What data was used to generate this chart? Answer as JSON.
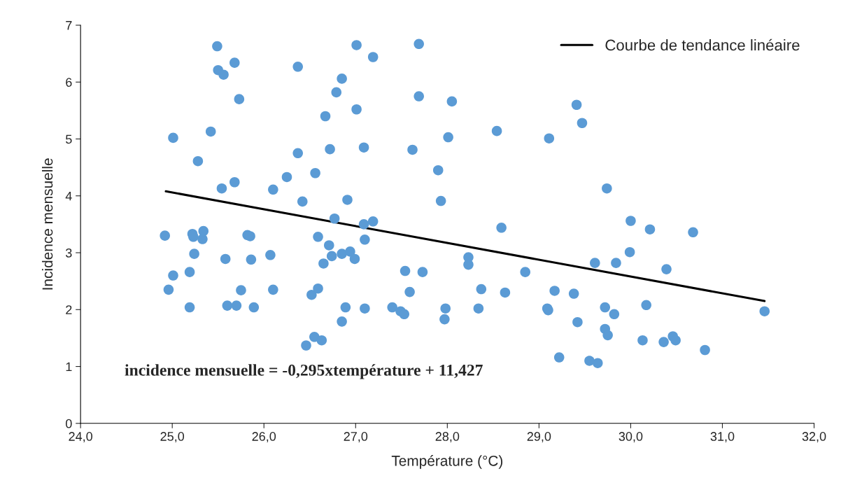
{
  "chart_data": {
    "type": "scatter",
    "xlabel": "Température (°C)",
    "ylabel": "Incidence mensuelle",
    "xlim": [
      24,
      32
    ],
    "ylim": [
      0,
      7
    ],
    "xticks": [
      {
        "value": 24,
        "label": "24,0"
      },
      {
        "value": 25,
        "label": "25,0"
      },
      {
        "value": 26,
        "label": "26,0"
      },
      {
        "value": 27,
        "label": "27,0"
      },
      {
        "value": 28,
        "label": "28,0"
      },
      {
        "value": 29,
        "label": "29,0"
      },
      {
        "value": 30,
        "label": "30,0"
      },
      {
        "value": 31,
        "label": "31,0"
      },
      {
        "value": 32,
        "label": "32,0"
      }
    ],
    "yticks": [
      0,
      1,
      2,
      3,
      4,
      5,
      6,
      7
    ],
    "grid": false,
    "legend": "top right",
    "marker": "circle",
    "annotations": [
      {
        "text": "incidence mensuelle = -0,295xtempérature + 11,427"
      }
    ],
    "series": [
      {
        "color": "#5b9bd5",
        "x": [
          24.92,
          24.96,
          25.01,
          25.01,
          25.19,
          25.22,
          25.23,
          25.24,
          25.28,
          25.33,
          25.34,
          25.19,
          25.42,
          25.49,
          25.5,
          25.56,
          25.54,
          25.58,
          25.6,
          25.68,
          25.68,
          25.7,
          25.73,
          25.75,
          25.82,
          25.85,
          25.86,
          25.89,
          26.07,
          26.1,
          26.1,
          26.25,
          26.37,
          26.37,
          26.42,
          26.46,
          26.52,
          26.55,
          26.56,
          26.59,
          26.59,
          26.63,
          26.65,
          26.67,
          26.71,
          26.72,
          26.74,
          26.77,
          26.79,
          26.85,
          26.85,
          26.85,
          26.89,
          26.91,
          26.94,
          26.99,
          27.01,
          27.01,
          27.09,
          27.09,
          27.1,
          27.1,
          27.19,
          27.19,
          27.4,
          27.49,
          27.53,
          27.54,
          27.59,
          27.62,
          27.69,
          27.69,
          27.73,
          27.9,
          27.93,
          27.98,
          27.97,
          28.01,
          28.05,
          28.23,
          28.23,
          28.34,
          28.37,
          28.54,
          28.59,
          28.63,
          28.85,
          29.09,
          29.1,
          29.11,
          29.17,
          29.22,
          29.38,
          29.41,
          29.42,
          29.47,
          29.55,
          29.64,
          29.61,
          29.72,
          29.74,
          29.72,
          29.75,
          29.82,
          29.84,
          29.99,
          30.13,
          30.0,
          30.17,
          30.21,
          30.36,
          30.39,
          30.46,
          30.49,
          30.68,
          30.81,
          31.46
        ],
        "values": [
          3.3,
          2.35,
          2.6,
          5.02,
          2.66,
          3.33,
          3.28,
          2.98,
          4.61,
          3.24,
          3.38,
          2.04,
          5.13,
          6.63,
          6.21,
          6.13,
          4.13,
          2.89,
          2.07,
          6.34,
          4.24,
          2.07,
          5.7,
          2.34,
          3.31,
          3.29,
          2.88,
          2.04,
          2.96,
          4.11,
          2.35,
          4.33,
          6.27,
          4.75,
          3.9,
          1.37,
          2.26,
          1.52,
          4.4,
          2.37,
          3.28,
          1.46,
          2.81,
          5.4,
          3.13,
          4.82,
          2.94,
          3.6,
          5.82,
          1.79,
          6.06,
          2.98,
          2.04,
          3.93,
          3.02,
          2.89,
          6.65,
          5.52,
          4.85,
          3.5,
          3.23,
          2.02,
          3.55,
          6.44,
          2.04,
          1.97,
          1.92,
          2.68,
          2.31,
          4.81,
          6.67,
          5.75,
          2.66,
          4.45,
          3.91,
          2.02,
          1.83,
          5.03,
          5.66,
          2.92,
          2.79,
          2.02,
          2.36,
          5.14,
          3.44,
          2.3,
          2.66,
          2.02,
          1.99,
          5.01,
          2.33,
          1.16,
          2.28,
          5.6,
          1.78,
          5.28,
          1.1,
          1.06,
          2.82,
          2.04,
          4.13,
          1.66,
          1.55,
          1.92,
          2.82,
          3.01,
          1.46,
          3.56,
          2.08,
          3.41,
          1.43,
          2.71,
          1.53,
          1.46,
          3.36,
          1.29,
          1.97
        ]
      },
      {
        "type": "line",
        "name": "Courbe de tendance linéaire",
        "color": "#000000",
        "line_style": "solid",
        "marker": "none",
        "x": [
          24.93,
          31.46
        ],
        "values": [
          4.08,
          2.15
        ]
      }
    ]
  }
}
